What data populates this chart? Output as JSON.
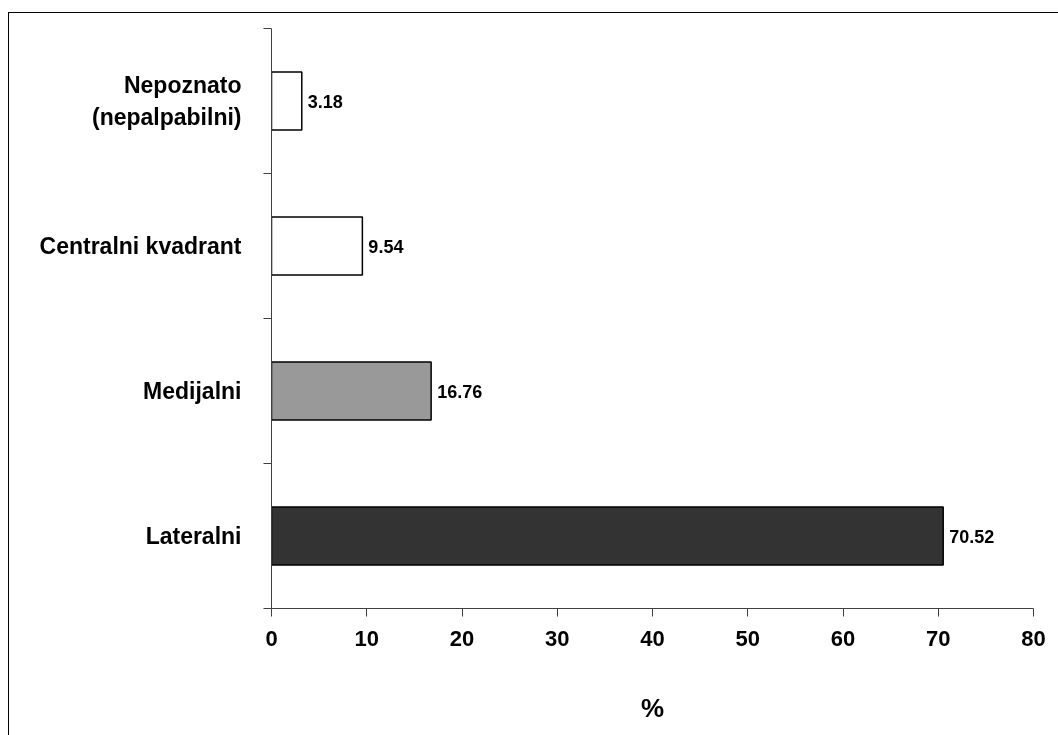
{
  "chart_data": {
    "type": "bar",
    "orientation": "horizontal",
    "categories": [
      "Nepoznato (nepalpabilni)",
      "Centralni kvadrant",
      "Medijalni",
      "Lateralni"
    ],
    "values": [
      3.18,
      9.54,
      16.76,
      70.52
    ],
    "colors": [
      "#ffffff",
      "#ffffff",
      "#999999",
      "#333333"
    ],
    "xlabel": "%",
    "xlim": [
      0,
      80
    ],
    "xticks": [
      0,
      10,
      20,
      30,
      40,
      50,
      60,
      70,
      80
    ],
    "data_labels": true,
    "grid": false
  }
}
